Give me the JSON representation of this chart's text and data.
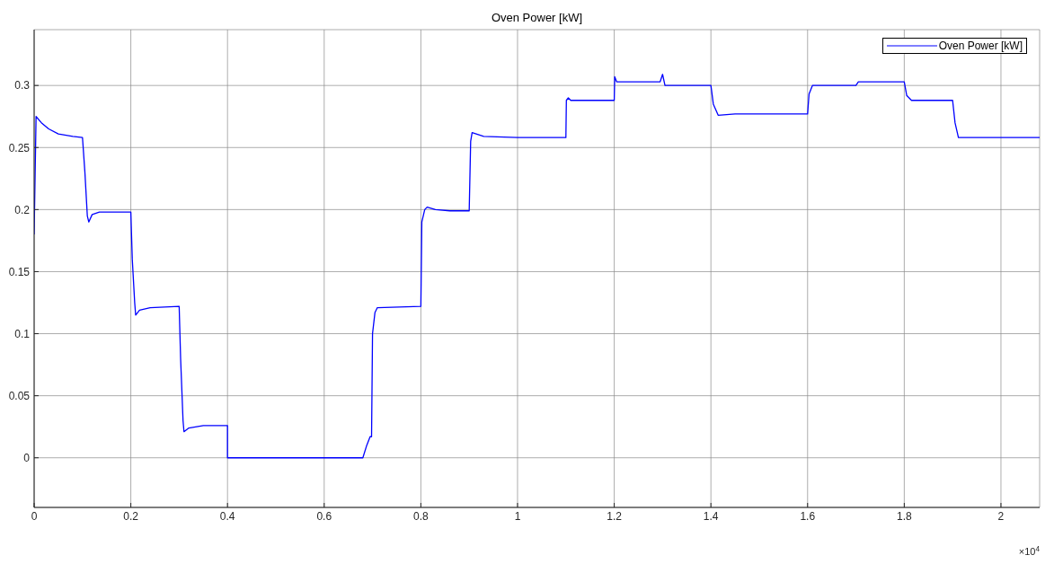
{
  "chart_data": {
    "type": "line",
    "title": "Oven Power [kW]",
    "annotations": [
      "×10$^{4}$"
    ],
    "x": [
      0,
      0.004,
      0.015,
      0.03,
      0.05,
      0.08,
      0.1,
      0.105,
      0.11,
      0.113,
      0.12,
      0.135,
      0.2,
      0.203,
      0.208,
      0.21,
      0.218,
      0.24,
      0.3,
      0.303,
      0.308,
      0.31,
      0.32,
      0.35,
      0.4,
      0.4,
      0.4005,
      0.68,
      0.688,
      0.695,
      0.698,
      0.7,
      0.705,
      0.71,
      0.8,
      0.802,
      0.808,
      0.813,
      0.83,
      0.86,
      0.9,
      0.903,
      0.906,
      0.93,
      1,
      1.1,
      1.101,
      1.105,
      1.11,
      1.2,
      1.201,
      1.205,
      1.25,
      1.295,
      1.3,
      1.305,
      1.35,
      1.4,
      1.405,
      1.415,
      1.45,
      1.6,
      1.603,
      1.61,
      1.65,
      1.7,
      1.705,
      1.75,
      1.8,
      1.805,
      1.815,
      1.85,
      1.9,
      1.905,
      1.912,
      1.93,
      2,
      2.08
    ],
    "series": [
      {
        "name": "Oven Power [kW]",
        "color": "#0000ff",
        "values": [
          0.18,
          0.275,
          0.27,
          0.265,
          0.261,
          0.259,
          0.258,
          0.23,
          0.195,
          0.19,
          0.196,
          0.198,
          0.198,
          0.16,
          0.125,
          0.115,
          0.119,
          0.121,
          0.122,
          0.08,
          0.03,
          0.021,
          0.024,
          0.026,
          0.026,
          0,
          0,
          0,
          0.01,
          0.017,
          0.017,
          0.1,
          0.117,
          0.121,
          0.122,
          0.19,
          0.2,
          0.202,
          0.2,
          0.199,
          0.199,
          0.255,
          0.262,
          0.259,
          0.258,
          0.258,
          0.288,
          0.29,
          0.288,
          0.288,
          0.307,
          0.303,
          0.303,
          0.303,
          0.309,
          0.3,
          0.3,
          0.3,
          0.285,
          0.276,
          0.277,
          0.277,
          0.293,
          0.3,
          0.3,
          0.3,
          0.303,
          0.303,
          0.303,
          0.292,
          0.288,
          0.288,
          0.288,
          0.27,
          0.258,
          0.258,
          0.258,
          0.258
        ]
      }
    ],
    "xlim": [
      0,
      2.08
    ],
    "xticks": [
      0,
      0.2,
      0.4,
      0.6,
      0.8,
      1,
      1.2,
      1.4,
      1.6,
      1.8,
      2
    ],
    "ylim": [
      -0.04,
      0.345
    ],
    "yticks": [
      0,
      0.05,
      0.1,
      0.15,
      0.2,
      0.25,
      0.3
    ],
    "grid": true,
    "legend": "top right",
    "marker": "none",
    "line_style": "solid"
  }
}
